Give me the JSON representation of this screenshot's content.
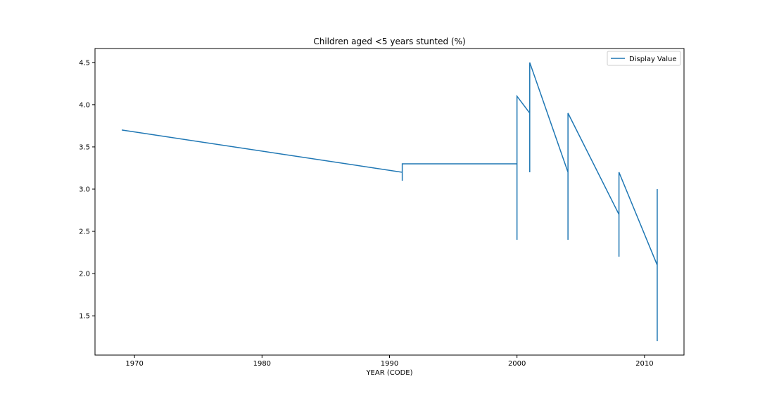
{
  "chart_data": {
    "type": "line",
    "title": "Children aged <5 years stunted (%)",
    "xlabel": "YEAR (CODE)",
    "ylabel": "",
    "xlim": [
      1966.9,
      2013.1
    ],
    "ylim": [
      1.035,
      4.665
    ],
    "xticks": [
      1970,
      1980,
      1990,
      2000,
      2010
    ],
    "yticks": [
      1.5,
      2.0,
      2.5,
      3.0,
      3.5,
      4.0,
      4.5
    ],
    "grid": false,
    "legend_position": "upper-right",
    "line_color": "#1f77b4",
    "series": [
      {
        "name": "Display Value",
        "x": [
          1969,
          1991,
          1991,
          1991,
          2000,
          2000,
          2000,
          2001,
          2001,
          2001,
          2004,
          2004,
          2004,
          2008,
          2008,
          2008,
          2011,
          2011,
          2011,
          2011
        ],
        "y": [
          3.7,
          3.2,
          3.1,
          3.3,
          3.3,
          2.4,
          4.1,
          3.9,
          3.2,
          4.5,
          3.2,
          2.4,
          3.9,
          2.7,
          2.2,
          3.2,
          2.1,
          1.2,
          3.0,
          2.1
        ]
      }
    ]
  }
}
